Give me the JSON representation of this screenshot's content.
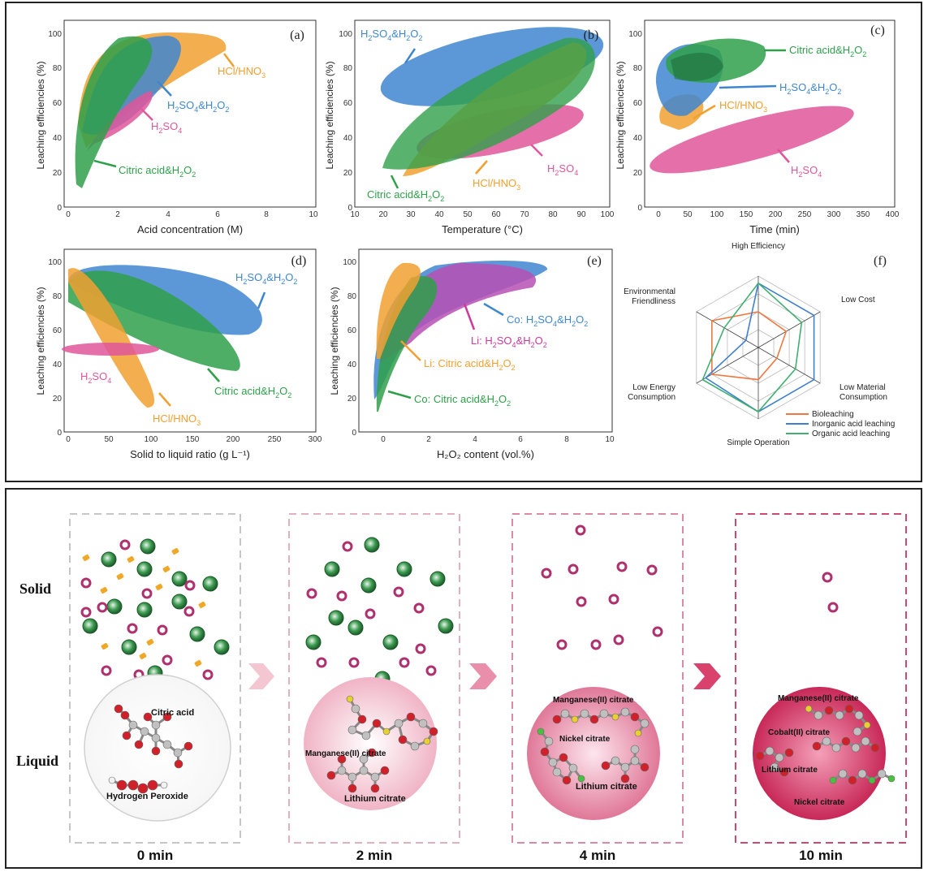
{
  "panels": [
    {
      "letter": "(a)",
      "xlabel": "Acid concentration (M)",
      "ylabel": "Leaching efficiencies (%)",
      "xticks": [
        "0",
        "2",
        "4",
        "6",
        "8",
        "10"
      ],
      "yticks": [
        "0",
        "20",
        "40",
        "60",
        "80",
        "100"
      ],
      "labels": [
        {
          "text": "HCl/HNO",
          "sub": "3",
          "color": "#f0a030"
        },
        {
          "text": "H",
          "sub": "2",
          "rest": "SO",
          "sub2": "4",
          "rest2": "&H",
          "sub3": "2",
          "rest3": "O",
          "sub4": "2",
          "color": "#3f86d0"
        },
        {
          "text": "H",
          "sub": "2",
          "rest": "SO",
          "sub2": "4",
          "color": "#e0569a"
        },
        {
          "text": "Citric acid&H",
          "sub": "2",
          "rest": "O",
          "sub2": "2",
          "color": "#2fa04a"
        }
      ]
    },
    {
      "letter": "(b)",
      "xlabel": "Temperature (°C)",
      "ylabel": "Leaching efficiencies (%)",
      "xticks": [
        "10",
        "20",
        "30",
        "40",
        "50",
        "60",
        "70",
        "80",
        "90",
        "100"
      ],
      "yticks": [
        "0",
        "20",
        "40",
        "60",
        "80",
        "100"
      ],
      "labels": [
        {
          "text": "H",
          "sub": "2",
          "rest": "SO",
          "sub2": "4",
          "rest2": "&H",
          "sub3": "2",
          "rest3": "O",
          "sub4": "2",
          "color": "#3f86d0"
        },
        {
          "text": "H",
          "sub": "2",
          "rest": "SO",
          "sub2": "4",
          "color": "#e0569a"
        },
        {
          "text": "HCl/HNO",
          "sub": "3",
          "color": "#f0a030"
        },
        {
          "text": "Citric acid&H",
          "sub": "2",
          "rest": "O",
          "sub2": "2",
          "color": "#2fa04a"
        }
      ]
    },
    {
      "letter": "(c)",
      "xlabel": "Time (min)",
      "ylabel": "Leaching efficiencies (%)",
      "xticks": [
        "0",
        "50",
        "100",
        "150",
        "200",
        "250",
        "300",
        "350",
        "400"
      ],
      "yticks": [
        "0",
        "20",
        "40",
        "60",
        "80",
        "100"
      ],
      "labels": [
        {
          "text": "Citric acid&H",
          "sub": "2",
          "rest": "O",
          "sub2": "2",
          "color": "#2fa04a"
        },
        {
          "text": "H",
          "sub": "2",
          "rest": "SO",
          "sub2": "4",
          "rest2": "&H",
          "sub3": "2",
          "rest3": "O",
          "sub4": "2",
          "color": "#3f86d0"
        },
        {
          "text": "HCl/HNO",
          "sub": "3",
          "color": "#f0a030"
        },
        {
          "text": "H",
          "sub": "2",
          "rest": "SO",
          "sub2": "4",
          "color": "#e0569a"
        }
      ]
    },
    {
      "letter": "(d)",
      "xlabel": "Solid to liquid ratio (g L⁻¹)",
      "ylabel": "Leaching efficiencies (%)",
      "xticks": [
        "0",
        "50",
        "100",
        "150",
        "200",
        "250",
        "300"
      ],
      "yticks": [
        "0",
        "20",
        "40",
        "60",
        "80",
        "100"
      ],
      "labels": [
        {
          "text": "H",
          "sub": "2",
          "rest": "SO",
          "sub2": "4",
          "rest2": "&H",
          "sub3": "2",
          "rest3": "O",
          "sub4": "2",
          "color": "#3f86d0"
        },
        {
          "text": "H",
          "sub": "2",
          "rest": "SO",
          "sub2": "4",
          "color": "#e0569a"
        },
        {
          "text": "Citric acid&H",
          "sub": "2",
          "rest": "O",
          "sub2": "2",
          "color": "#2fa04a"
        },
        {
          "text": "HCl/HNO",
          "sub": "3",
          "color": "#f0a030"
        }
      ]
    },
    {
      "letter": "(e)",
      "xlabel": "H₂O₂ content (vol.%)",
      "ylabel": "Leaching efficiencies (%)",
      "xticks": [
        "0",
        "2",
        "4",
        "6",
        "8",
        "10"
      ],
      "yticks": [
        "0",
        "20",
        "40",
        "60",
        "80",
        "100"
      ],
      "labels": [
        {
          "text": "Co: H",
          "sub": "2",
          "rest": "SO",
          "sub2": "4",
          "rest2": "&H",
          "sub3": "2",
          "rest3": "O",
          "sub4": "2",
          "color": "#3f86d0"
        },
        {
          "text": "Li: H",
          "sub": "2",
          "rest": "SO",
          "sub2": "4",
          "rest2": "&H",
          "sub3": "2",
          "rest3": "O",
          "sub4": "2",
          "color": "#cc3a9c"
        },
        {
          "text": "Li: Citric acid&H",
          "sub": "2",
          "rest": "O",
          "sub2": "2",
          "color": "#f0a030"
        },
        {
          "text": "Co: Citric acid&H",
          "sub": "2",
          "rest": "O",
          "sub2": "2",
          "color": "#2fa04a"
        }
      ]
    }
  ],
  "radar": {
    "letter": "(f)",
    "axes": [
      "High Efficiency",
      "Low Cost",
      "Low Material Consumption",
      "Simple Operation",
      "Low Energy Consumption",
      "Environmental Friendliness"
    ],
    "legend": [
      "Bioleaching",
      "Inorganic acid leaching",
      "Organic acid leaching"
    ],
    "colors": [
      "#f07840",
      "#3f7fd0",
      "#40b070"
    ],
    "levels": [
      [
        0.5,
        0.45,
        0.3,
        0.45,
        0.75,
        0.75
      ],
      [
        0.9,
        0.9,
        0.9,
        0.9,
        0.85,
        0.2
      ],
      [
        0.9,
        0.7,
        0.6,
        0.9,
        0.9,
        0.55
      ]
    ]
  },
  "process": {
    "row_solid": "Solid",
    "row_liquid": "Liquid",
    "steps": [
      {
        "time": "0 min",
        "labels": [
          "Citric acid",
          "Hydrogen Peroxide"
        ]
      },
      {
        "time": "2 min",
        "labels": [
          "Manganese(II) citrate",
          "Lithium citrate"
        ]
      },
      {
        "time": "4 min",
        "labels": [
          "Manganese(II) citrate",
          "Nickel citrate",
          "Lithium citrate"
        ]
      },
      {
        "time": "10 min",
        "labels": [
          "Manganese(II) citrate",
          "Cobalt(II) citrate",
          "Lithium citrate",
          "Nickel citrate"
        ]
      }
    ]
  }
}
